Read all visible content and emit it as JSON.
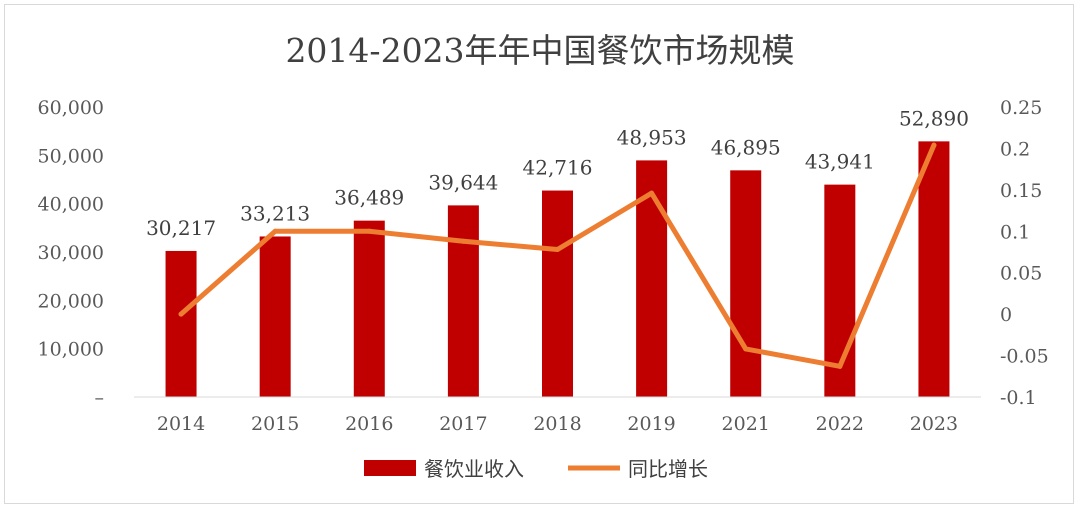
{
  "chart_data": {
    "type": "bar",
    "title": "2014-2023年年中国餐饮市场规模",
    "categories": [
      "2014",
      "2015",
      "2016",
      "2017",
      "2018",
      "2019",
      "2021",
      "2022",
      "2023"
    ],
    "series": [
      {
        "name": "餐饮业收入",
        "type": "bar",
        "axis": "left",
        "values": [
          30217,
          33213,
          36489,
          39644,
          42716,
          48953,
          46895,
          43941,
          52890
        ],
        "labels": [
          "30,217",
          "33,213",
          "36,489",
          "39,644",
          "42,716",
          "48,953",
          "46,895",
          "43,941",
          "52,890"
        ],
        "color": "#c00000"
      },
      {
        "name": "同比增长",
        "type": "line",
        "axis": "right",
        "values": [
          0.0,
          0.1,
          0.1,
          0.088,
          0.078,
          0.146,
          -0.042,
          -0.063,
          0.204
        ],
        "color": "#ed7d31"
      }
    ],
    "ylim": [
      0,
      60000
    ],
    "yticks": [
      "–",
      "10,000",
      "20,000",
      "30,000",
      "40,000",
      "50,000",
      "60,000"
    ],
    "y2lim": [
      -0.1,
      0.25
    ],
    "y2ticks": [
      "-0.1",
      "-0.05",
      "0",
      "0.05",
      "0.1",
      "0.15",
      "0.2",
      "0.25"
    ],
    "grid": false,
    "legend_position": "bottom"
  }
}
